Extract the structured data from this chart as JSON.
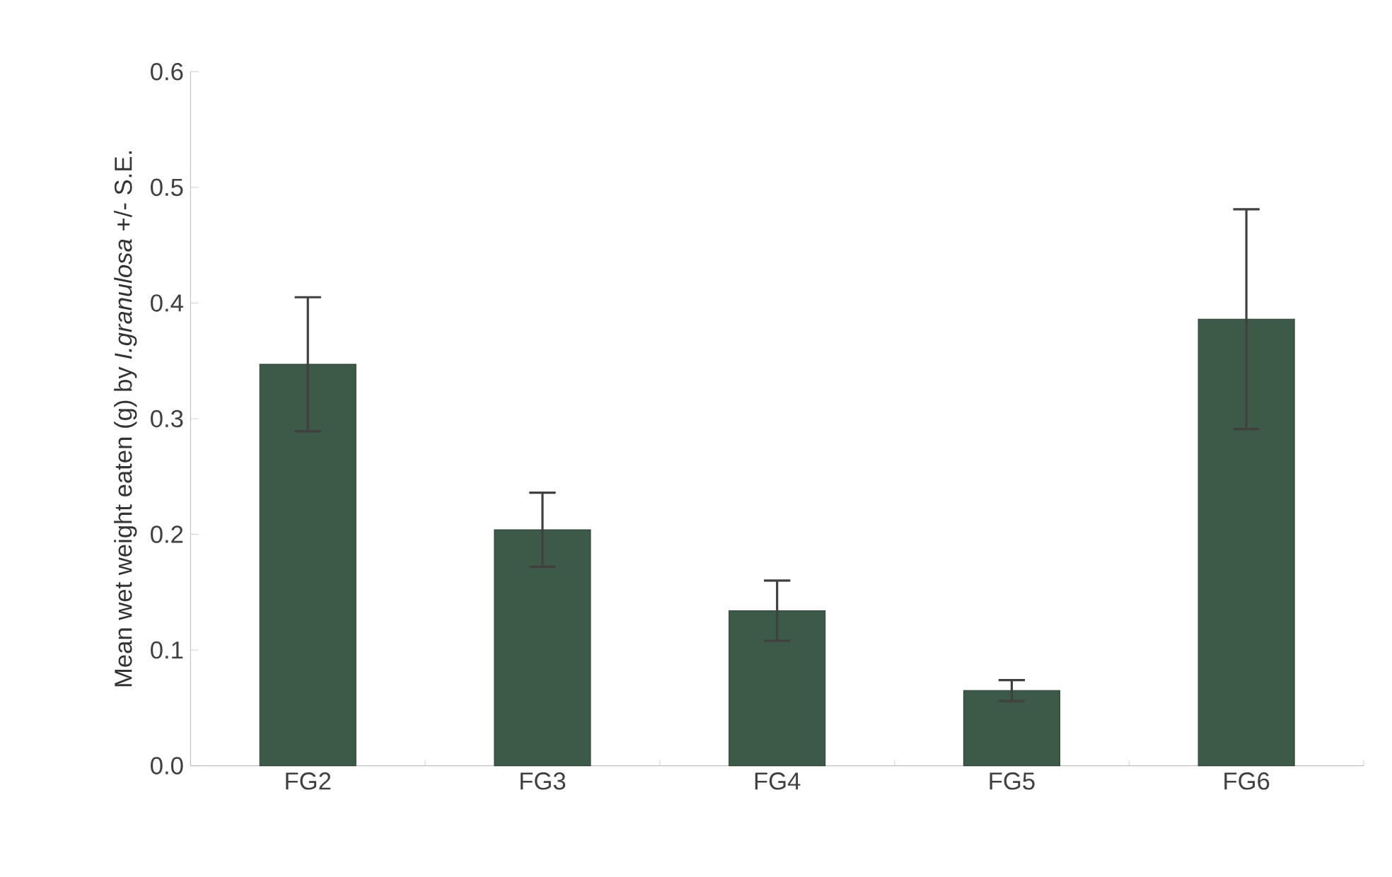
{
  "chart_data": {
    "type": "bar",
    "ylabel": "Mean wet weight eaten (g) by *I.granulosa* +/- S.E.",
    "categories": [
      "FG2",
      "FG3",
      "FG4",
      "FG5",
      "FG6"
    ],
    "values": [
      0.347,
      0.204,
      0.134,
      0.065,
      0.386
    ],
    "errors": [
      0.058,
      0.032,
      0.026,
      0.009,
      0.095
    ],
    "color": "#3d5a48",
    "ylim": [
      0,
      0.6
    ],
    "yticks": [
      {
        "value": 0,
        "label": "0.0"
      },
      0.1,
      0.2,
      0.3,
      0.4,
      0.5,
      0.6
    ],
    "grid": false
  }
}
